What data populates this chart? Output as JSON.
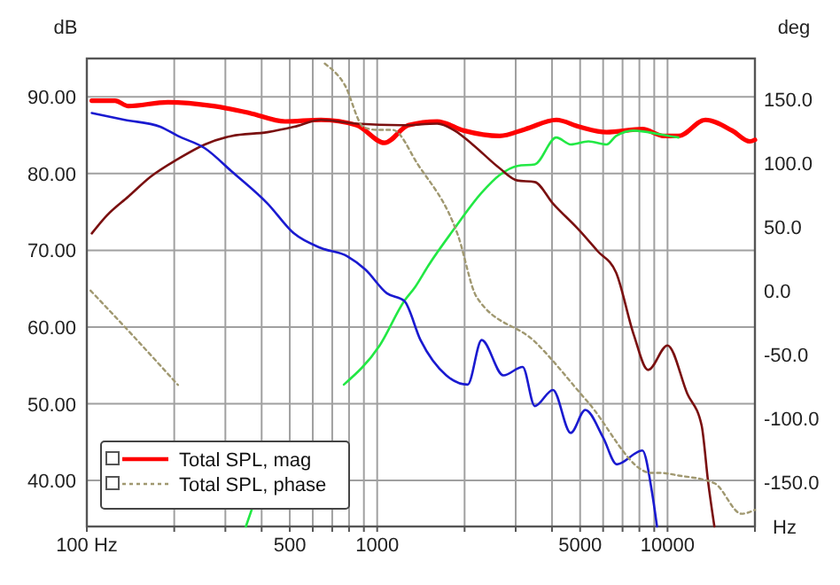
{
  "chart_data": {
    "type": "line",
    "xlabel": "Hz",
    "ylabel": "dB",
    "y2label": "deg",
    "log": "x",
    "grid": true,
    "legend": "bottom left",
    "marker": "none",
    "xlim": [
      100,
      20000
    ],
    "xticks": [
      {
        "value": 100,
        "label": "100 Hz"
      },
      {
        "value": 200,
        "label": null
      },
      {
        "value": 300,
        "label": null
      },
      {
        "value": 400,
        "label": null
      },
      500,
      {
        "value": 600,
        "label": null
      },
      {
        "value": 700,
        "label": null
      },
      {
        "value": 800,
        "label": null
      },
      {
        "value": 900,
        "label": null
      },
      1000,
      {
        "value": 2000,
        "label": null
      },
      {
        "value": 3000,
        "label": null
      },
      {
        "value": 4000,
        "label": null
      },
      5000,
      {
        "value": 6000,
        "label": null
      },
      {
        "value": 7000,
        "label": null
      },
      {
        "value": 8000,
        "label": null
      },
      {
        "value": 9000,
        "label": null
      },
      10000,
      {
        "value": 20000,
        "label": null
      }
    ],
    "ylim": [
      34,
      95
    ],
    "yticks": [
      {
        "value": 40,
        "label": "40.00"
      },
      {
        "value": 50,
        "label": "50.00"
      },
      {
        "value": 60,
        "label": "60.00"
      },
      {
        "value": 70,
        "label": "70.00"
      },
      {
        "value": 80,
        "label": "80.00"
      },
      {
        "value": 90,
        "label": "90.00"
      }
    ],
    "y2lim": [
      -185,
      182
    ],
    "y2ticks": [
      {
        "value": -150,
        "label": "-150.0"
      },
      {
        "value": -100,
        "label": "-100.0"
      },
      {
        "value": -50,
        "label": "-50.0"
      },
      {
        "value": 0,
        "label": "0.0"
      },
      {
        "value": 50,
        "label": "50.0"
      },
      {
        "value": 100,
        "label": "100.0"
      },
      {
        "value": 150,
        "label": "150.0"
      }
    ],
    "series": [
      {
        "name": "Total SPL, mag",
        "color": "#ff0000",
        "x": [
          104,
          125,
          139,
          190,
          273,
          363,
          482,
          640,
          850,
          1060,
          1280,
          1610,
          1990,
          2640,
          3240,
          4140,
          4970,
          6170,
          8190,
          9700,
          10900,
          13500,
          16700,
          19200,
          20000
        ],
        "values": [
          89.5,
          89.5,
          88.8,
          89.3,
          88.8,
          87.9,
          86.8,
          87.0,
          86.3,
          84.0,
          86.3,
          86.8,
          85.6,
          84.9,
          85.8,
          87.0,
          86.1,
          85.4,
          85.8,
          84.9,
          84.9,
          87.0,
          85.6,
          84.2,
          84.4
        ]
      },
      {
        "color": "#22e844",
        "x": [
          353,
          372,
          517,
          640,
          768,
          1020,
          1240,
          1350,
          1500,
          1850,
          2290,
          2640,
          3040,
          3490,
          4140,
          4640,
          5340,
          6170,
          6650,
          7650,
          9470,
          10900
        ],
        "values": [
          34,
          36.5,
          null,
          null,
          52.5,
          57.6,
          63.4,
          65.2,
          68,
          72.9,
          77.5,
          79.8,
          81,
          81.2,
          84.7,
          83.8,
          84.2,
          83.8,
          84.9,
          85.6,
          85.1,
          84.7
        ]
      },
      {
        "color": "#7a1010",
        "x": [
          104,
          117,
          139,
          166,
          206,
          255,
          315,
          419,
          517,
          640,
          850,
          1210,
          1610,
          1850,
          2130,
          2640,
          3040,
          3490,
          4030,
          4970,
          5740,
          6650,
          7650,
          8570,
          10000,
          11700,
          13100,
          13800,
          14500
        ],
        "values": [
          72.2,
          74.5,
          77,
          79.6,
          81.9,
          83.8,
          84.9,
          85.4,
          86.1,
          87.0,
          86.5,
          86.3,
          86.5,
          85.6,
          83.8,
          80.7,
          79.1,
          78.9,
          76.1,
          72.6,
          69.9,
          67.1,
          59,
          54.4,
          57.6,
          51.3,
          47.2,
          39.8,
          34
        ]
      },
      {
        "color": "#1a1ad0",
        "x": [
          104,
          135,
          179,
          206,
          255,
          315,
          419,
          517,
          640,
          791,
          910,
          1080,
          1240,
          1410,
          1730,
          2050,
          2290,
          2720,
          3170,
          3490,
          4030,
          4640,
          5210,
          6000,
          6690,
          8190,
          8830,
          9200
        ],
        "values": [
          87.9,
          87,
          86.1,
          84.9,
          83.3,
          80.3,
          76.1,
          72.2,
          70.3,
          69.2,
          67.5,
          64.4,
          63.4,
          58.3,
          53.7,
          52.5,
          58.3,
          53.7,
          54.8,
          49.7,
          51.8,
          46.2,
          49.2,
          45.6,
          42.1,
          43.9,
          38.6,
          34
        ]
      },
      {
        "name": "Total SPL, phase",
        "color": "#a09870",
        "axis": "y2",
        "line_style": "dotted",
        "x": [
          103,
          145,
          206,
          300,
          660,
          770,
          900,
          1000,
          1130,
          1380,
          1900,
          2200,
          3490,
          5300,
          8800,
          9470,
          10900,
          14500,
          18000,
          20000
        ],
        "values": [
          0,
          -36,
          -74,
          null,
          178,
          162,
          128,
          126,
          126,
          99,
          43,
          -5,
          -40,
          -87,
          -143,
          -143,
          -145,
          -151,
          -175,
          -172
        ]
      }
    ]
  }
}
